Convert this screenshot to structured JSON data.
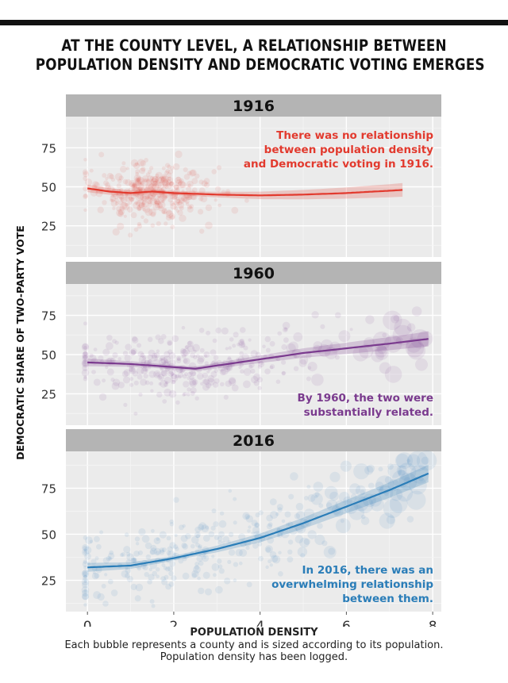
{
  "title_lines": [
    "AT THE COUNTY LEVEL, A RELATIONSHIP BETWEEN",
    "POPULATION DENSITY AND DEMOCRATIC VOTING EMERGES"
  ],
  "footer": {
    "xlabel": "POPULATION DENSITY",
    "note_lines": [
      "Each bubble represents a county and is sized according to its population.",
      "Population density has been logged."
    ]
  },
  "chart_data": {
    "type": "scatter",
    "xlabel": "POPULATION DENSITY",
    "ylabel": "DEMOCRATIC SHARE OF TWO-PARTY VOTE",
    "xlim": [
      -0.5,
      8.2
    ],
    "x_ticks": [
      0,
      2,
      4,
      6,
      8
    ],
    "y_ticks": [
      25,
      50,
      75
    ],
    "grid": true,
    "panels": [
      {
        "label": "1916",
        "color": "#e23a2e",
        "ylim": [
          5,
          95
        ],
        "annotation": [
          "There was no relationship",
          "between population density",
          "and Democratic voting in 1916."
        ],
        "annotation_position": "top-right",
        "trend": {
          "x": [
            0,
            0.5,
            1,
            1.5,
            2,
            3,
            4,
            5,
            6,
            7,
            7.3
          ],
          "y": [
            49,
            47,
            46,
            47,
            46,
            45,
            44.5,
            45,
            46,
            47.5,
            48
          ]
        },
        "cloud": {
          "x_range": [
            0,
            2.8
          ],
          "x_center": 1.4,
          "y_center": 48,
          "y_spread": 9
        }
      },
      {
        "label": "1960",
        "color": "#7a3a8e",
        "ylim": [
          5,
          95
        ],
        "annotation": [
          "By 1960, the two were",
          "substantially related."
        ],
        "annotation_position": "bottom-right",
        "trend": {
          "x": [
            0,
            1,
            2,
            2.5,
            3,
            4,
            5,
            6,
            7,
            7.9
          ],
          "y": [
            45,
            44,
            42,
            41,
            43,
            47,
            51,
            54,
            57,
            60
          ]
        },
        "cloud": {
          "x_range": [
            0,
            5.5
          ],
          "x_center": 2.2,
          "y_center": 42,
          "y_spread": 10
        }
      },
      {
        "label": "2016",
        "color": "#2a7db8",
        "ylim": [
          8,
          95
        ],
        "annotation": [
          "In 2016, there was an",
          "overwhelming relationship",
          "between them."
        ],
        "annotation_position": "bottom-right",
        "trend": {
          "x": [
            0,
            1,
            2,
            3,
            4,
            5,
            6,
            7,
            7.9
          ],
          "y": [
            32,
            33,
            37,
            42,
            48,
            56,
            65,
            74,
            83
          ]
        },
        "cloud": {
          "x_range": [
            0,
            7.9
          ],
          "x_center": 2.5,
          "y_center": 30,
          "y_spread": 10
        }
      }
    ]
  }
}
